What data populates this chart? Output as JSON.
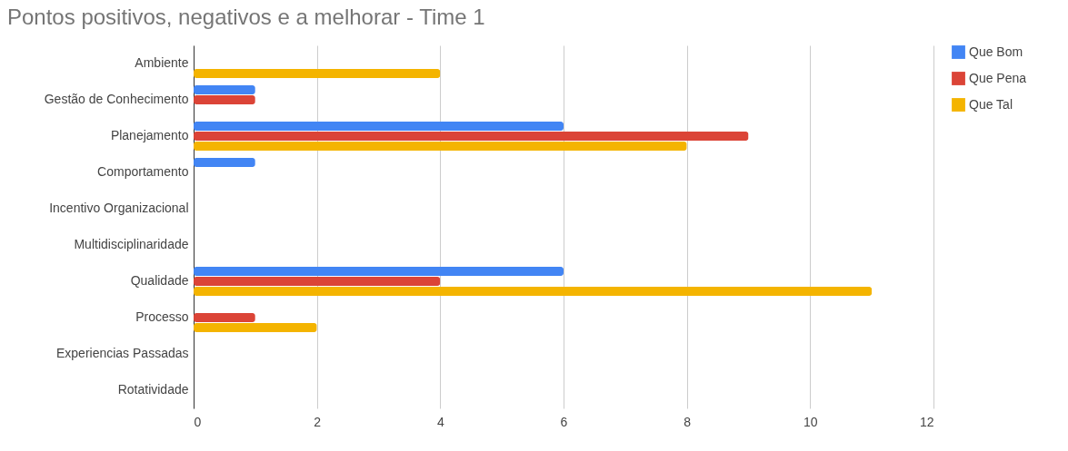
{
  "chart_data": {
    "type": "bar",
    "orientation": "horizontal",
    "title": "Pontos positivos, negativos e a melhorar - Time 1",
    "categories": [
      "Ambiente",
      "Gestão de Conhecimento",
      "Planejamento",
      "Comportamento",
      "Incentivo Organizacional",
      "Multidisciplinaridade",
      "Qualidade",
      "Processo",
      "Experiencias Passadas",
      "Rotatividade"
    ],
    "series": [
      {
        "name": "Que Bom",
        "color": "#4285f4",
        "values": [
          0,
          1,
          6,
          1,
          0,
          0,
          6,
          0,
          0,
          0
        ]
      },
      {
        "name": "Que Pena",
        "color": "#db4437",
        "values": [
          0,
          1,
          9,
          0,
          0,
          0,
          4,
          1,
          0,
          0
        ]
      },
      {
        "name": "Que Tal",
        "color": "#f4b400",
        "values": [
          4,
          0,
          8,
          0,
          0,
          0,
          11,
          2,
          0,
          0
        ]
      }
    ],
    "xlim": [
      0,
      12
    ],
    "xticks": [
      0,
      2,
      4,
      6,
      8,
      10,
      12
    ],
    "grid": "x",
    "legend": "right"
  }
}
